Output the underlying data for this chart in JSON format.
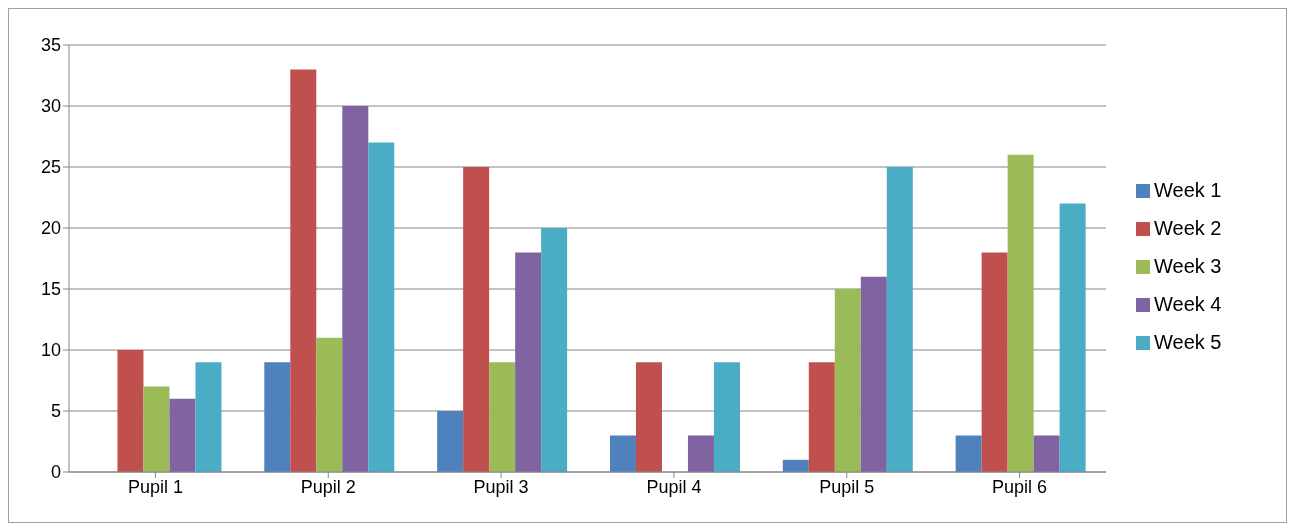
{
  "chart_data": {
    "type": "bar",
    "categories": [
      "Pupil 1",
      "Pupil 2",
      "Pupil 3",
      "Pupil 4",
      "Pupil 5",
      "Pupil 6"
    ],
    "series": [
      {
        "name": "Week 1",
        "color": "#4f81bd",
        "values": [
          0,
          9,
          5,
          3,
          1,
          3
        ]
      },
      {
        "name": "Week 2",
        "color": "#c0504d",
        "values": [
          10,
          33,
          25,
          9,
          9,
          18
        ]
      },
      {
        "name": "Week 3",
        "color": "#9bbb59",
        "values": [
          7,
          11,
          9,
          0,
          15,
          26
        ]
      },
      {
        "name": "Week 4",
        "color": "#8064a2",
        "values": [
          6,
          30,
          18,
          3,
          16,
          3
        ]
      },
      {
        "name": "Week 5",
        "color": "#4bacc6",
        "values": [
          9,
          27,
          20,
          9,
          25,
          22
        ]
      }
    ],
    "ylim": [
      0,
      35
    ],
    "yticks": [
      0,
      5,
      10,
      15,
      20,
      25,
      30,
      35
    ],
    "grid": "y",
    "legend": "right"
  }
}
